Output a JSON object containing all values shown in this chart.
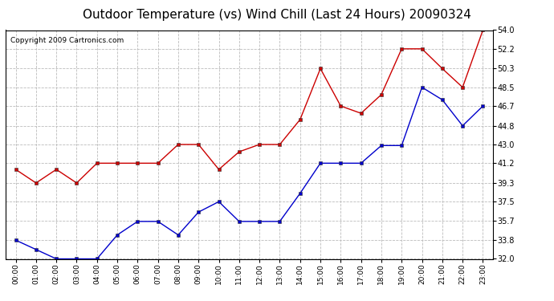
{
  "title": "Outdoor Temperature (vs) Wind Chill (Last 24 Hours) 20090324",
  "copyright": "Copyright 2009 Cartronics.com",
  "hours": [
    "00:00",
    "01:00",
    "02:00",
    "03:00",
    "04:00",
    "05:00",
    "06:00",
    "07:00",
    "08:00",
    "09:00",
    "10:00",
    "11:00",
    "12:00",
    "13:00",
    "14:00",
    "15:00",
    "16:00",
    "17:00",
    "18:00",
    "19:00",
    "20:00",
    "21:00",
    "22:00",
    "23:00"
  ],
  "temp_red": [
    40.6,
    39.3,
    40.6,
    39.3,
    41.2,
    41.2,
    41.2,
    41.2,
    43.0,
    43.0,
    40.6,
    42.3,
    43.0,
    43.0,
    45.4,
    50.3,
    46.7,
    46.0,
    47.8,
    52.2,
    52.2,
    50.3,
    48.5,
    54.0
  ],
  "temp_blue": [
    33.8,
    32.9,
    32.0,
    32.0,
    32.0,
    34.3,
    35.6,
    35.6,
    34.3,
    36.5,
    37.5,
    35.6,
    35.6,
    35.6,
    38.3,
    41.2,
    41.2,
    41.2,
    42.9,
    42.9,
    48.5,
    47.3,
    44.8,
    46.7
  ],
  "ylim_min": 32.0,
  "ylim_max": 54.0,
  "yticks": [
    32.0,
    33.8,
    35.7,
    37.5,
    39.3,
    41.2,
    43.0,
    44.8,
    46.7,
    48.5,
    50.3,
    52.2,
    54.0
  ],
  "red_color": "#cc0000",
  "blue_color": "#0000cc",
  "background_color": "#ffffff",
  "grid_color": "#bbbbbb",
  "title_fontsize": 11,
  "copyright_fontsize": 6.5
}
